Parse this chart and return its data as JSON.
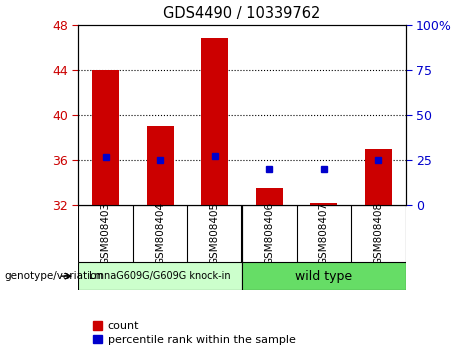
{
  "title": "GDS4490 / 10339762",
  "samples": [
    "GSM808403",
    "GSM808404",
    "GSM808405",
    "GSM808406",
    "GSM808407",
    "GSM808408"
  ],
  "bar_values": [
    44.0,
    39.0,
    46.8,
    33.5,
    32.2,
    37.0
  ],
  "percentile_values": [
    27.0,
    25.0,
    27.5,
    20.0,
    20.0,
    25.0
  ],
  "bar_color": "#cc0000",
  "percentile_color": "#0000cc",
  "ylim_left": [
    32,
    48
  ],
  "ylim_right": [
    0,
    100
  ],
  "yticks_left": [
    32,
    36,
    40,
    44,
    48
  ],
  "yticks_right": [
    0,
    25,
    50,
    75,
    100
  ],
  "ytick_labels_right": [
    "0",
    "25",
    "50",
    "75",
    "100%"
  ],
  "grid_lines": [
    36,
    40,
    44
  ],
  "group1_label": "LmnaG609G/G609G knock-in",
  "group2_label": "wild type",
  "group1_color": "#ccffcc",
  "group2_color": "#66dd66",
  "group_annotation": "genotype/variation",
  "legend_count_label": "count",
  "legend_percentile_label": "percentile rank within the sample",
  "background_color": "#ffffff",
  "plot_bg": "#ffffff",
  "tick_label_color_left": "#cc0000",
  "tick_label_color_right": "#0000cc",
  "group_bg_color1": "#d3d3d3",
  "group_bg_color2": "#90ee90",
  "bar_width": 0.5
}
